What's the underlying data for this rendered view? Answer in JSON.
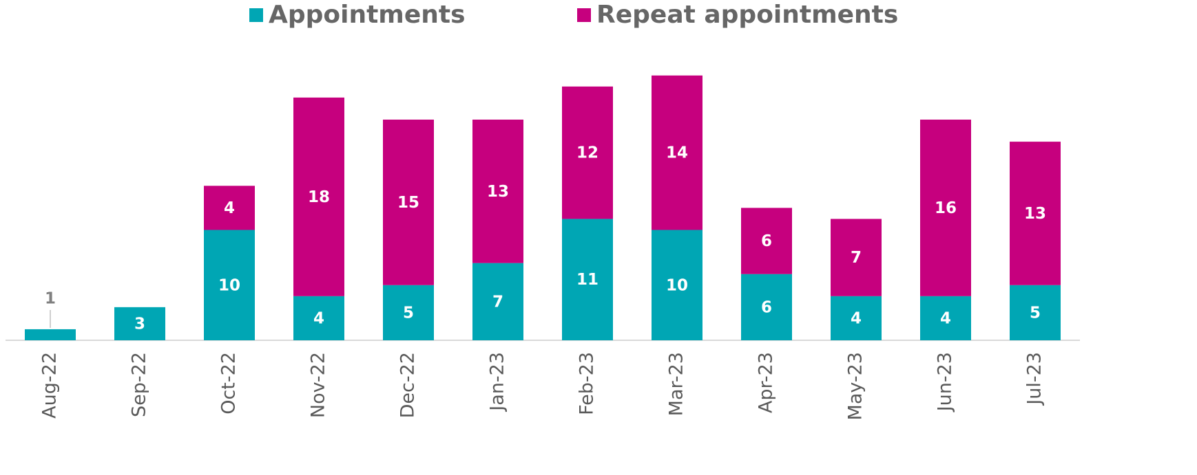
{
  "chart_data": {
    "type": "stacked_bar",
    "categories": [
      "Aug-22",
      "Sep-22",
      "Oct-22",
      "Nov-22",
      "Dec-22",
      "Jan-23",
      "Feb-23",
      "Mar-23",
      "Apr-23",
      "May-23",
      "Jun-23",
      "Jul-23"
    ],
    "series": [
      {
        "name": "Appointments",
        "color": "#00a6b4",
        "values": [
          1,
          3,
          10,
          4,
          5,
          7,
          11,
          10,
          6,
          4,
          4,
          5
        ]
      },
      {
        "name": "Repeat appointments",
        "color": "#c6007e",
        "values": [
          null,
          null,
          4,
          18,
          15,
          13,
          12,
          14,
          6,
          7,
          16,
          13
        ]
      }
    ],
    "ylim": [
      0,
      30
    ],
    "legend": "top"
  }
}
